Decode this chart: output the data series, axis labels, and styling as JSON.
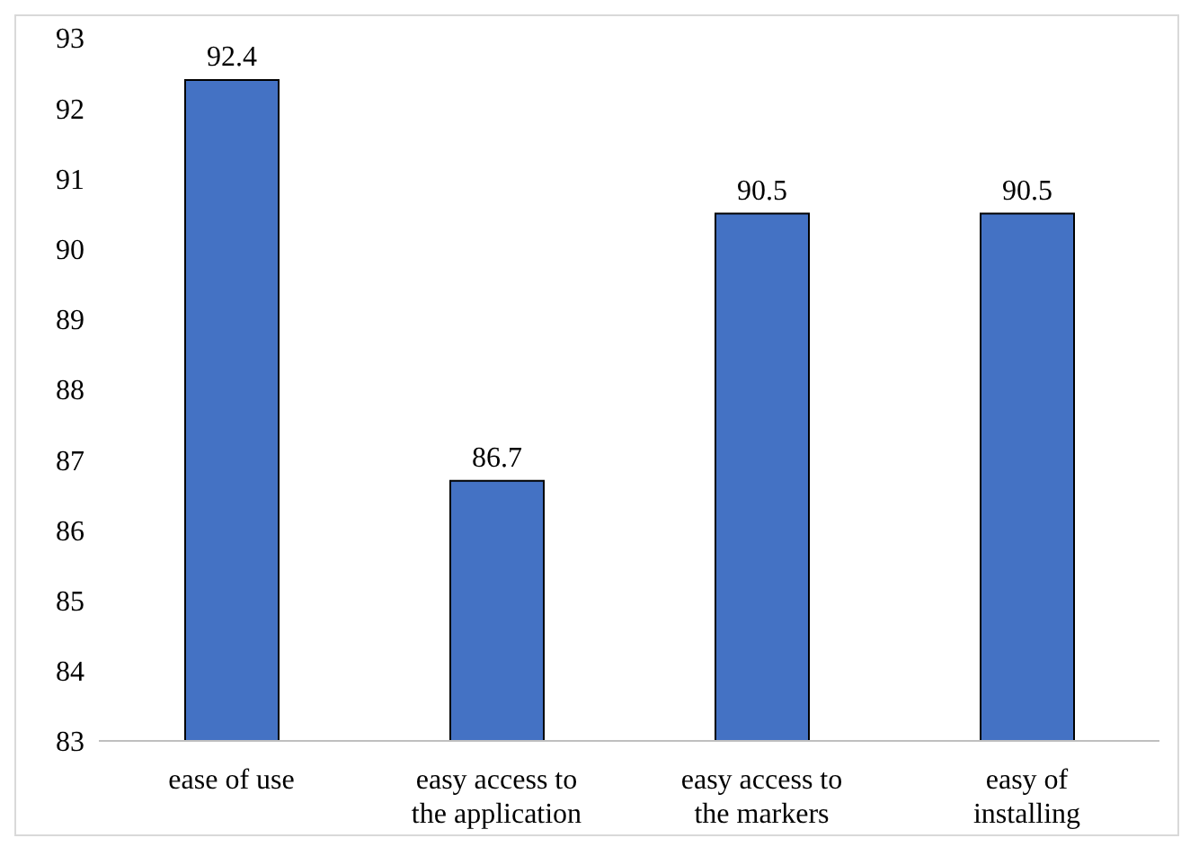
{
  "chart_data": {
    "type": "bar",
    "categories": [
      "ease of use",
      "easy access to the application",
      "easy access to the markers",
      "easy of installing"
    ],
    "values": [
      92.4,
      86.7,
      90.5,
      90.5
    ],
    "color": "#4472c4",
    "ylim": [
      83,
      93
    ],
    "yticks": [
      83,
      84,
      85,
      86,
      87,
      88,
      89,
      90,
      91,
      92,
      93
    ],
    "grid": false,
    "data_labels": true,
    "legend": false
  }
}
